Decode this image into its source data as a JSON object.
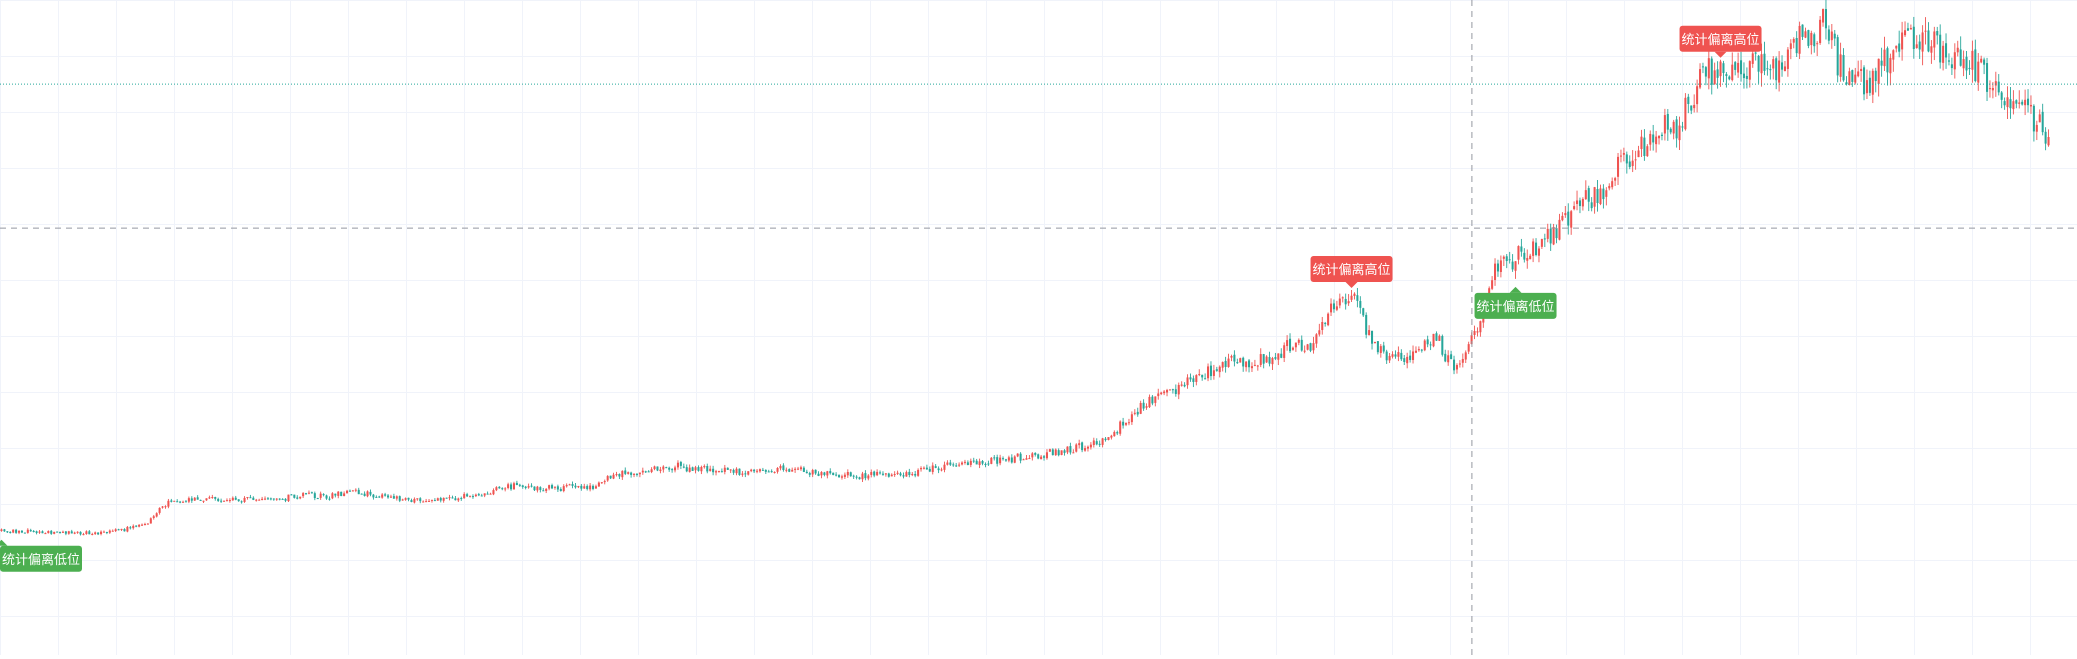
{
  "chart_data": {
    "type": "candlestick",
    "title": "",
    "xlabel": "",
    "ylabel": "",
    "grid": true,
    "ylim": [
      0,
      100
    ],
    "colors": {
      "up": "#ef5350",
      "down": "#26a69a",
      "marker_high": "#ef5350",
      "marker_low": "#4caf50",
      "grid": "#f0f3fa",
      "crosshair": "#9598a1",
      "price_line": "#26a69a"
    },
    "price_line_value": 85.5,
    "crosshair": {
      "index_fraction": 0.718,
      "value": 58.8
    },
    "path": [
      [
        0,
        2.6
      ],
      [
        5,
        2.2
      ],
      [
        7,
        3.6
      ],
      [
        8,
        7.7
      ],
      [
        10,
        8.8
      ],
      [
        13,
        8.3
      ],
      [
        15,
        9.3
      ],
      [
        16,
        8.9
      ],
      [
        17,
        9.9
      ],
      [
        19,
        8.8
      ],
      [
        21,
        8.1
      ],
      [
        23,
        9.3
      ],
      [
        25,
        10.9
      ],
      [
        27,
        10.5
      ],
      [
        29,
        11.0
      ],
      [
        30,
        13.2
      ],
      [
        33,
        14.6
      ],
      [
        35,
        13.7
      ],
      [
        37,
        13.4
      ],
      [
        38,
        14.3
      ],
      [
        40,
        13.3
      ],
      [
        42,
        12.8
      ],
      [
        44,
        13.1
      ],
      [
        46,
        14.5
      ],
      [
        48,
        15.3
      ],
      [
        50,
        16.4
      ],
      [
        52,
        17.4
      ],
      [
        54,
        19.8
      ],
      [
        55,
        23.4
      ],
      [
        56,
        27.0
      ],
      [
        58,
        30.1
      ],
      [
        60,
        33.9
      ],
      [
        62,
        34.3
      ],
      [
        63,
        37.2
      ],
      [
        64,
        36.4
      ],
      [
        65,
        44.5
      ],
      [
        66,
        46.5
      ],
      [
        67,
        37.2
      ],
      [
        68,
        34.5
      ],
      [
        69,
        35.5
      ],
      [
        70,
        39.2
      ],
      [
        71,
        31.9
      ],
      [
        72,
        40.0
      ],
      [
        73,
        50.8
      ],
      [
        74,
        53.5
      ],
      [
        75,
        54.7
      ],
      [
        76,
        58.5
      ],
      [
        77,
        63.5
      ],
      [
        78,
        64.7
      ],
      [
        79,
        70.0
      ],
      [
        80,
        73.0
      ],
      [
        81,
        77.3
      ],
      [
        82,
        78.0
      ],
      [
        83,
        86.9
      ],
      [
        84,
        88.8
      ],
      [
        85,
        88.3
      ],
      [
        86,
        89.6
      ],
      [
        87,
        87.2
      ],
      [
        88,
        94.7
      ],
      [
        89,
        96.6
      ],
      [
        90,
        87.2
      ],
      [
        91,
        85.7
      ],
      [
        92,
        89.3
      ],
      [
        93,
        93.8
      ],
      [
        94,
        93.0
      ],
      [
        95,
        91.6
      ],
      [
        96,
        90.9
      ],
      [
        97,
        86.5
      ],
      [
        98,
        82.6
      ],
      [
        99,
        80.0
      ],
      [
        100,
        75.5
      ]
    ],
    "markers": [
      {
        "label": "统计偏离低位",
        "at": 0,
        "kind": "low"
      },
      {
        "label": "统计偏离高位",
        "at": 66,
        "kind": "high"
      },
      {
        "label": "统计偏离低位",
        "at": 74,
        "kind": "low"
      },
      {
        "label": "统计偏离高位",
        "at": 84,
        "kind": "high"
      }
    ]
  }
}
